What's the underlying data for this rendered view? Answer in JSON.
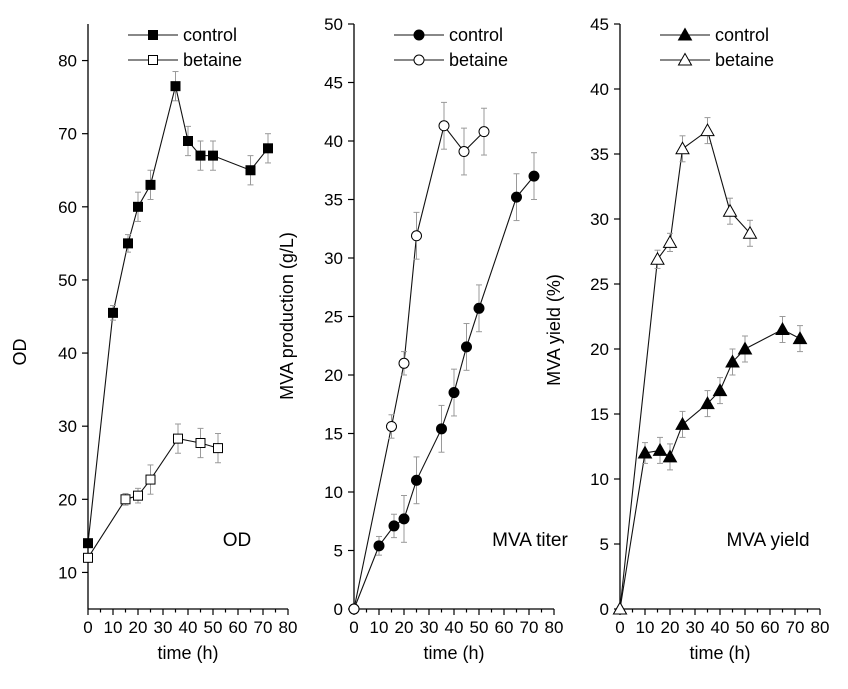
{
  "chart_data": [
    {
      "type": "line",
      "annotation": "OD",
      "xlabel": "time (h)",
      "ylabel": "OD",
      "xlim": [
        0,
        80
      ],
      "ylim": [
        5,
        85
      ],
      "xticks": [
        0,
        10,
        20,
        30,
        40,
        50,
        60,
        70,
        80
      ],
      "yticks": [
        10,
        20,
        30,
        40,
        50,
        60,
        70,
        80
      ],
      "marker": "square",
      "legend_position": "top",
      "series": [
        {
          "name": "control",
          "filled": true,
          "x": [
            0,
            10,
            16,
            20,
            25,
            35,
            40,
            45,
            50,
            65,
            72
          ],
          "y": [
            14,
            45.5,
            55,
            60,
            63,
            76.5,
            69,
            67,
            67,
            65,
            68
          ],
          "err": [
            0.5,
            1.0,
            1.2,
            2.0,
            2.0,
            2.0,
            2.0,
            2.0,
            2.0,
            2.0,
            2.0
          ]
        },
        {
          "name": "betaine",
          "filled": false,
          "x": [
            0,
            15,
            20,
            25,
            36,
            45,
            52
          ],
          "y": [
            12,
            20,
            20.5,
            22.7,
            28.3,
            27.7,
            27
          ],
          "err": [
            0.5,
            0.8,
            1.0,
            2.0,
            2.0,
            2.0,
            2.0
          ]
        }
      ]
    },
    {
      "type": "line",
      "annotation": "MVA titer",
      "xlabel": "time (h)",
      "ylabel": "MVA production (g/L)",
      "xlim": [
        0,
        80
      ],
      "ylim": [
        0,
        50
      ],
      "xticks": [
        0,
        10,
        20,
        30,
        40,
        50,
        60,
        70,
        80
      ],
      "yticks": [
        0,
        5,
        10,
        15,
        20,
        25,
        30,
        35,
        40,
        45,
        50
      ],
      "marker": "circle",
      "legend_position": "top",
      "series": [
        {
          "name": "control",
          "filled": true,
          "x": [
            0,
            10,
            16,
            20,
            25,
            35,
            40,
            45,
            50,
            65,
            72
          ],
          "y": [
            0,
            5.4,
            7.1,
            7.7,
            11,
            15.4,
            18.5,
            22.4,
            25.7,
            35.2,
            37
          ],
          "err": [
            0,
            0.8,
            1.0,
            2.0,
            2.0,
            2.0,
            2.0,
            2.0,
            2.0,
            2.0,
            2.0
          ]
        },
        {
          "name": "betaine",
          "filled": false,
          "x": [
            0,
            15,
            20,
            25,
            36,
            44,
            52
          ],
          "y": [
            0,
            15.6,
            21,
            31.9,
            41.3,
            39.1,
            40.8
          ],
          "err": [
            0,
            1.0,
            1.0,
            2.0,
            2.0,
            2.0,
            2.0
          ]
        }
      ]
    },
    {
      "type": "line",
      "annotation": "MVA yield",
      "xlabel": "time (h)",
      "ylabel": "MVA yield (%)",
      "xlim": [
        0,
        80
      ],
      "ylim": [
        0,
        45
      ],
      "xticks": [
        0,
        10,
        20,
        30,
        40,
        50,
        60,
        70,
        80
      ],
      "yticks": [
        0,
        5,
        10,
        15,
        20,
        25,
        30,
        35,
        40,
        45
      ],
      "marker": "triangle",
      "legend_position": "top",
      "series": [
        {
          "name": "control",
          "filled": true,
          "x": [
            0,
            10,
            16,
            20,
            25,
            35,
            40,
            45,
            50,
            65,
            72
          ],
          "y": [
            0,
            12,
            12.2,
            11.7,
            14.2,
            15.8,
            16.8,
            19,
            20,
            21.5,
            20.8
          ],
          "err": [
            0,
            0.8,
            1.0,
            1.0,
            1.0,
            1.0,
            1.0,
            1.0,
            1.0,
            1.0,
            1.0
          ]
        },
        {
          "name": "betaine",
          "filled": false,
          "x": [
            0,
            15,
            20,
            25,
            35,
            44,
            52
          ],
          "y": [
            0,
            26.9,
            28.2,
            35.4,
            36.8,
            30.6,
            28.9
          ],
          "err": [
            0,
            0.7,
            0.7,
            1.0,
            1.0,
            1.0,
            1.0
          ]
        }
      ]
    }
  ]
}
